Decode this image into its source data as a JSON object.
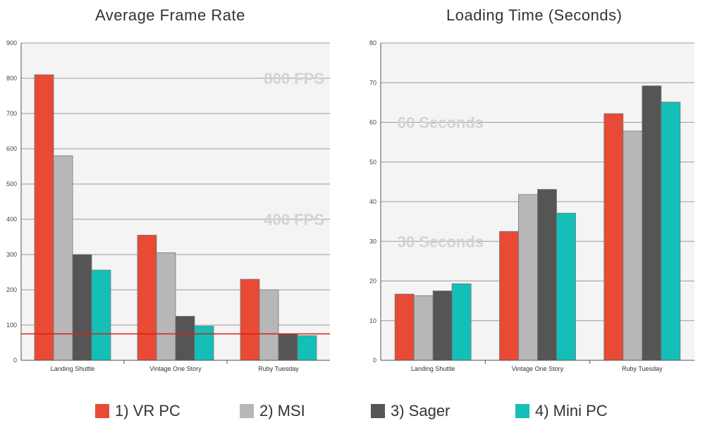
{
  "chart_data": [
    {
      "type": "bar",
      "title": "Average Frame Rate",
      "categories": [
        "Landing Shuttle",
        "Vintage One Story",
        "Ruby Tuesday"
      ],
      "series": [
        {
          "name": "1) VR PC",
          "values": [
            810,
            355,
            230
          ]
        },
        {
          "name": "2) MSI",
          "values": [
            580,
            305,
            200
          ]
        },
        {
          "name": "3) Sager",
          "values": [
            300,
            125,
            75
          ]
        },
        {
          "name": "4) Mini PC",
          "values": [
            256,
            97,
            70
          ]
        }
      ],
      "ylim": [
        0,
        900
      ],
      "yticks": [
        0,
        100,
        200,
        300,
        400,
        500,
        600,
        700,
        800,
        900
      ],
      "grid": true,
      "reference_line": {
        "value": 75,
        "color": "#d62010"
      },
      "annotations": [
        {
          "text": "800 FPS",
          "y": 800
        },
        {
          "text": "400 FPS",
          "y": 400
        }
      ]
    },
    {
      "type": "bar",
      "title": "Loading Time (Seconds)",
      "categories": [
        "Landing Shuttle",
        "Vintage One Story",
        "Ruby Tuesday"
      ],
      "series": [
        {
          "name": "1) VR PC",
          "values": [
            16.7,
            32.5,
            62.2
          ]
        },
        {
          "name": "2) MSI",
          "values": [
            16.3,
            41.8,
            57.8
          ]
        },
        {
          "name": "3) Sager",
          "values": [
            17.5,
            43.1,
            69.2
          ]
        },
        {
          "name": "4) Mini PC",
          "values": [
            19.3,
            37.1,
            65.1
          ]
        }
      ],
      "ylim": [
        0,
        80
      ],
      "yticks": [
        0,
        10,
        20,
        30,
        40,
        50,
        60,
        70,
        80
      ],
      "grid": true,
      "annotations": [
        {
          "text": "60 Seconds",
          "y": 60
        },
        {
          "text": "30 Seconds",
          "y": 30
        }
      ]
    }
  ],
  "legend": {
    "placement": "bottom",
    "items": [
      {
        "label": "1) VR PC",
        "color": "#e84a35"
      },
      {
        "label": "2) MSI",
        "color": "#b7b7b7"
      },
      {
        "label": "3) Sager",
        "color": "#555555"
      },
      {
        "label": "4) Mini PC",
        "color": "#14bfb8"
      }
    ]
  }
}
